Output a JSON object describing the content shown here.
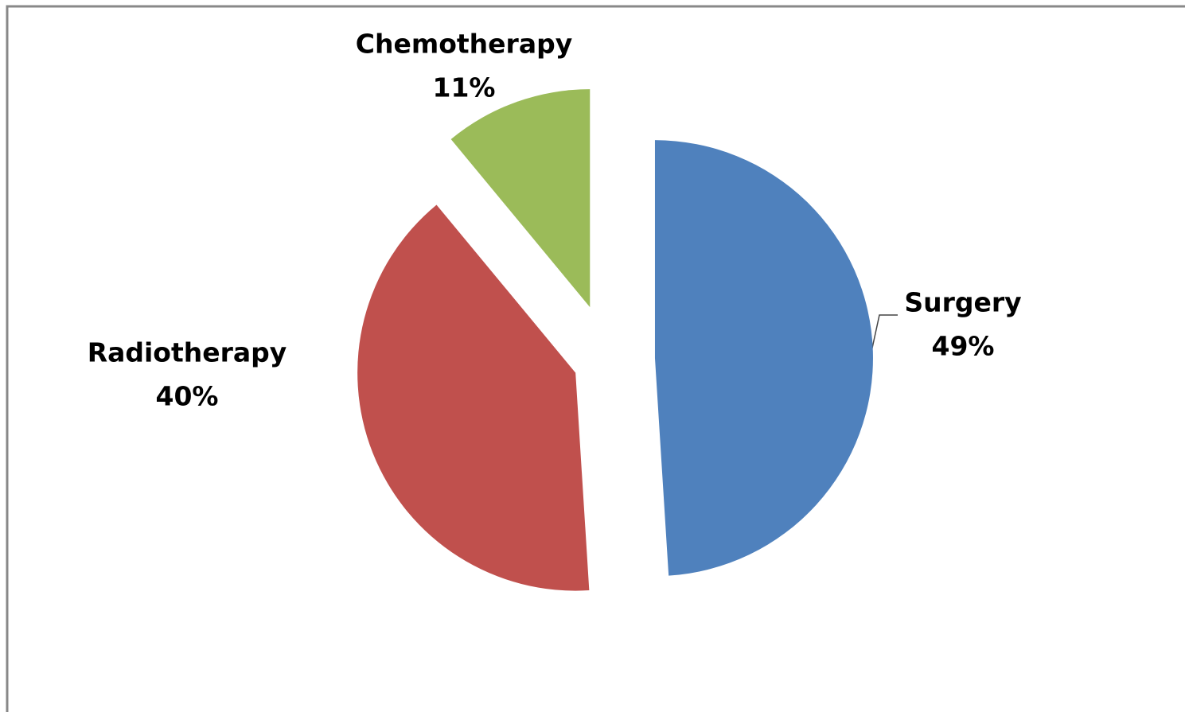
{
  "chart_data": {
    "type": "pie",
    "categories": [
      "Surgery",
      "Radiotherapy",
      "Chemotherapy"
    ],
    "values": [
      49,
      40,
      11
    ],
    "value_labels": [
      "49%",
      "40%",
      "11%"
    ],
    "colors": [
      "#4f81bd",
      "#c0504d",
      "#9bbb59"
    ]
  }
}
